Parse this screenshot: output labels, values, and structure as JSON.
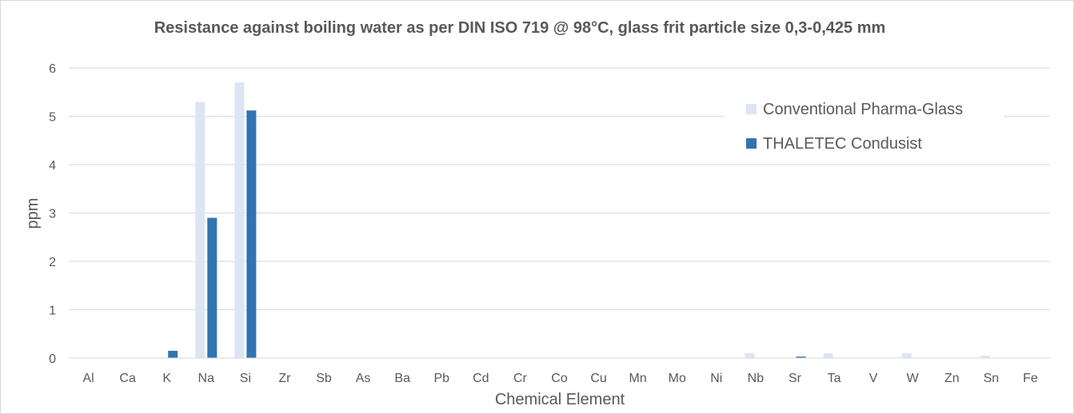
{
  "chart_data": {
    "type": "bar",
    "title": "Resistance against boiling water as per DIN ISO 719 @ 98°C, glass frit particle size 0,3-0,425 mm",
    "xlabel": "Chemical Element",
    "ylabel": "ppm",
    "ylim": [
      0,
      6
    ],
    "yticks": [
      "0",
      "1",
      "2",
      "3",
      "4",
      "5",
      "6"
    ],
    "grid": true,
    "legend_position": "top-right",
    "categories": [
      "Al",
      "Ca",
      "K",
      "Na",
      "Si",
      "Zr",
      "Sb",
      "As",
      "Ba",
      "Pb",
      "Cd",
      "Cr",
      "Co",
      "Cu",
      "Mn",
      "Mo",
      "Ni",
      "Nb",
      "Sr",
      "Ta",
      "V",
      "W",
      "Zn",
      "Sn",
      "Fe"
    ],
    "series": [
      {
        "name": "Conventional Pharma-Glass",
        "color": "#dce6f2",
        "values": [
          0,
          0,
          0,
          5.3,
          5.7,
          0,
          0.01,
          0.01,
          0.01,
          0.01,
          0.01,
          0.01,
          0.01,
          0.01,
          0.01,
          0.01,
          0.01,
          0.1,
          0.01,
          0.1,
          0.01,
          0.1,
          0.01,
          0.05,
          0.01
        ]
      },
      {
        "name": "THALETEC Condusist",
        "color": "#2e75b6",
        "values": [
          0,
          0,
          0.15,
          2.9,
          5.12,
          0,
          0,
          0,
          0,
          0,
          0,
          0,
          0,
          0,
          0,
          0,
          0,
          0,
          0.03,
          0,
          0,
          0,
          0,
          0,
          0
        ]
      }
    ]
  }
}
